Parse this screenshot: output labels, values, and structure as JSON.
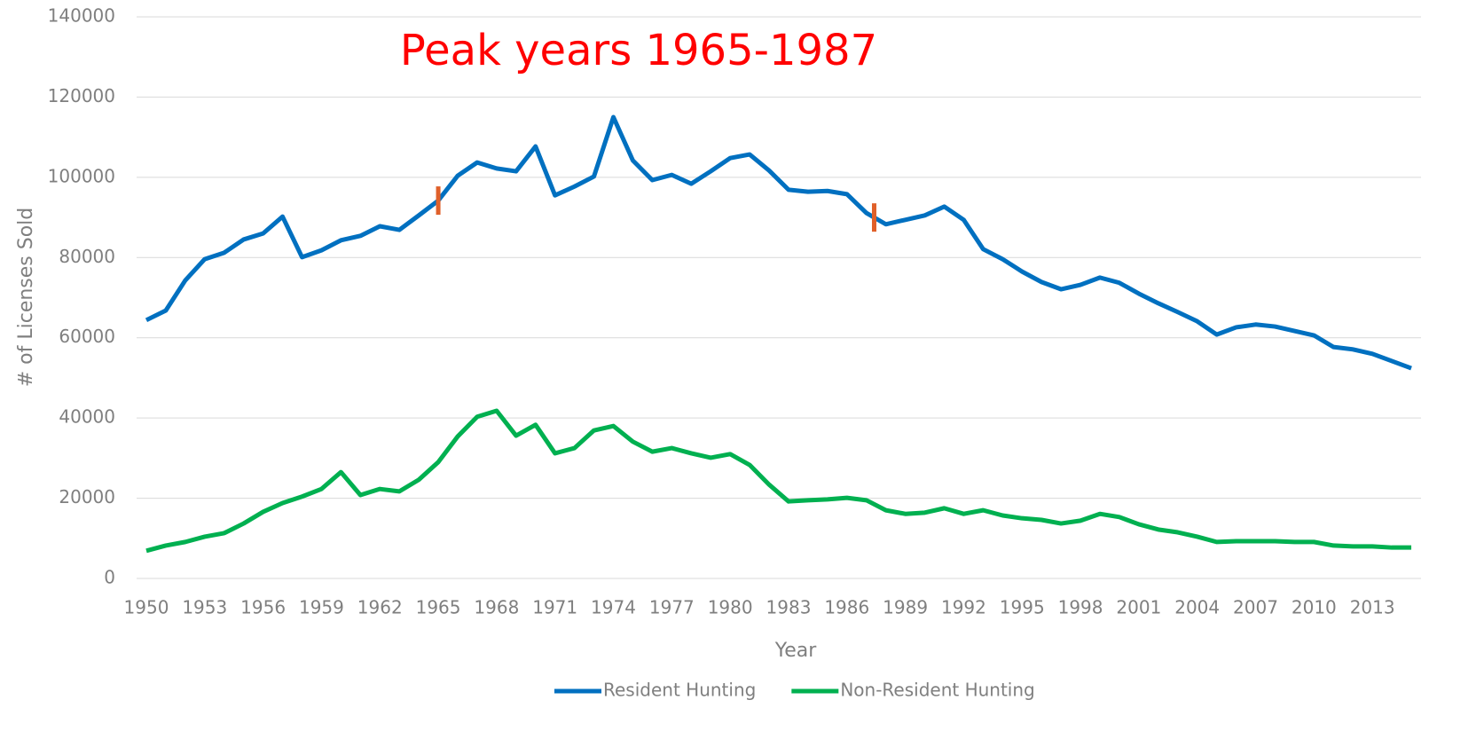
{
  "chart_data": {
    "type": "line",
    "annotation": "Peak years 1965-1987",
    "highlight_x": [
      1965,
      1987.4
    ],
    "x_label": "Year",
    "y_label": "# of Licenses Sold",
    "x": [
      1950,
      1951,
      1952,
      1953,
      1954,
      1955,
      1956,
      1957,
      1958,
      1959,
      1960,
      1961,
      1962,
      1963,
      1964,
      1965,
      1966,
      1967,
      1968,
      1969,
      1970,
      1971,
      1972,
      1973,
      1974,
      1975,
      1976,
      1977,
      1978,
      1979,
      1980,
      1981,
      1982,
      1983,
      1984,
      1985,
      1986,
      1987,
      1988,
      1989,
      1990,
      1991,
      1992,
      1993,
      1994,
      1995,
      1996,
      1997,
      1998,
      1999,
      2000,
      2001,
      2002,
      2003,
      2004,
      2005,
      2006,
      2007,
      2008,
      2009,
      2010,
      2011,
      2012,
      2013,
      2014,
      2015
    ],
    "series": [
      {
        "name": "Resident Hunting",
        "color": "#0070c0",
        "values": [
          64400,
          66800,
          74300,
          79600,
          81200,
          84500,
          86000,
          90200,
          80100,
          81800,
          84300,
          85400,
          87800,
          86900,
          90500,
          94200,
          100400,
          103700,
          102200,
          101500,
          107700,
          95500,
          97700,
          100200,
          115000,
          104200,
          99300,
          100600,
          98400,
          101500,
          104800,
          105700,
          101700,
          96900,
          96400,
          96600,
          95800,
          91100,
          88300,
          89400,
          90500,
          92700,
          89400,
          82100,
          79600,
          76500,
          73900,
          72100,
          73200,
          75000,
          73700,
          71000,
          68600,
          66400,
          64100,
          60800,
          62600,
          63300,
          62800,
          61700,
          60600,
          57700,
          57100,
          56000,
          54200,
          52400
        ]
      },
      {
        "name": "Non-Resident Hunting",
        "color": "#00b050",
        "values": [
          6900,
          8200,
          9100,
          10400,
          11300,
          13700,
          16600,
          18800,
          20400,
          22300,
          26500,
          20800,
          22300,
          21700,
          24600,
          29000,
          35400,
          40300,
          41800,
          35600,
          38300,
          31200,
          32500,
          36900,
          38000,
          34100,
          31600,
          32500,
          31200,
          30100,
          31000,
          28300,
          23400,
          19200,
          19500,
          19700,
          20100,
          19500,
          17000,
          16100,
          16400,
          17500,
          16100,
          17000,
          15700,
          15000,
          14600,
          13700,
          14400,
          16100,
          15300,
          13500,
          12200,
          11500,
          10400,
          9100,
          9300,
          9300,
          9300,
          9100,
          9100,
          8200,
          8000,
          8000,
          7700,
          7700
        ]
      }
    ],
    "xlim": [
      1949.5,
      2015.5
    ],
    "xticks": [
      1950,
      1953,
      1956,
      1959,
      1962,
      1965,
      1968,
      1971,
      1974,
      1977,
      1980,
      1983,
      1986,
      1989,
      1992,
      1995,
      1998,
      2001,
      2004,
      2007,
      2010,
      2013
    ],
    "ylim": [
      0,
      140000
    ],
    "yticks": [
      0,
      20000,
      40000,
      60000,
      80000,
      100000,
      120000,
      140000
    ],
    "grid": true,
    "highlight_color": "#e0602a",
    "annotation_color": "#ff0000",
    "legend": "bottom"
  }
}
